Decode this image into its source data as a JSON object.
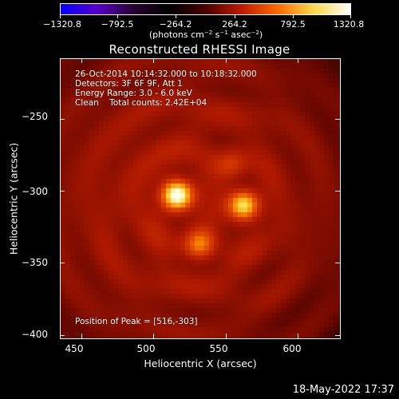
{
  "colorbar": {
    "tick_labels": [
      "−1320.8",
      "−792.5",
      "−264.2",
      "264.2",
      "792.5",
      "1320.8"
    ],
    "units_prefix": "(photons cm",
    "units_exp1": "−2",
    "units_mid1": " s",
    "units_exp2": "−1",
    "units_mid2": " asec",
    "units_exp3": "−2",
    "units_suffix": ")",
    "colormap": [
      "#0000ff",
      "#5500cc",
      "#2a0033",
      "#000000",
      "#4a0000",
      "#c01a00",
      "#ff6a00",
      "#ffd84a",
      "#ffffff"
    ]
  },
  "title": "Reconstructed RHESSI Image",
  "info": {
    "line1": "26-Oct-2014 10:14:32.000 to 10:18:32.000",
    "line2": "Detectors: 3F 6F 9F, Att 1",
    "line3": "Energy Range: 3.0 - 6.0 keV",
    "line4": "Clean    Total counts: 2.42E+04",
    "peak": "Position of Peak = [516,-303]"
  },
  "axes": {
    "xlabel": "Heliocentric X (arcsec)",
    "ylabel": "Heliocentric Y (arcsec)",
    "xlim": [
      435,
      630
    ],
    "ylim": [
      -403,
      -208
    ],
    "xticks": [
      450,
      500,
      550,
      600
    ],
    "xtick_labels": [
      "450",
      "500",
      "550",
      "600"
    ],
    "yticks": [
      -250,
      -300,
      -350,
      -400
    ],
    "ytick_labels": [
      "−250",
      "−300",
      "−350",
      "−400"
    ]
  },
  "sources": [
    {
      "x": 516,
      "y": -303,
      "peak": 1.0
    },
    {
      "x": 563,
      "y": -310,
      "peak": 0.78
    },
    {
      "x": 532,
      "y": -338,
      "peak": 0.45
    },
    {
      "x": 555,
      "y": -282,
      "peak": 0.2
    }
  ],
  "timestamp": "18-May-2022 17:37"
}
